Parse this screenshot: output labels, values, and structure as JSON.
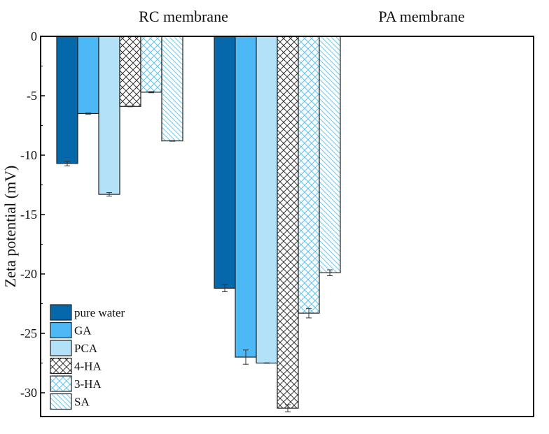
{
  "chart_data": {
    "type": "bar",
    "ylabel": "Zeta potential (mV)",
    "ylim": [
      -32,
      0
    ],
    "yticks": [
      0,
      -5,
      -10,
      -15,
      -20,
      -25,
      -30
    ],
    "grid": false,
    "legend_position": "bottom-left",
    "groups": [
      "RC membrane",
      "PA membrane"
    ],
    "series": [
      {
        "name": "pure water",
        "color": "#0468aa",
        "pattern": "solid",
        "values": [
          -10.7,
          -21.2
        ],
        "errors": [
          0.2,
          0.3
        ]
      },
      {
        "name": "GA",
        "color": "#4cb8f5",
        "pattern": "solid",
        "values": [
          -6.5,
          -27.0
        ],
        "errors": [
          0.05,
          0.6
        ]
      },
      {
        "name": "PCA",
        "color": "#b3e2f8",
        "pattern": "solid",
        "values": [
          -13.3,
          -27.5
        ],
        "errors": [
          0.15,
          0.02
        ]
      },
      {
        "name": "4-HA",
        "color": "#333333",
        "pattern": "crosshatch",
        "values": [
          -5.9,
          -31.3
        ],
        "errors": [
          0.03,
          0.3
        ]
      },
      {
        "name": "3-HA",
        "color": "#5cc4f0",
        "pattern": "crosshatch",
        "values": [
          -4.7,
          -23.3
        ],
        "errors": [
          0.05,
          0.4
        ]
      },
      {
        "name": "SA",
        "color": "#6cc8ee",
        "pattern": "diagonal",
        "values": [
          -8.8,
          -19.9
        ],
        "errors": [
          0.03,
          0.25
        ]
      }
    ]
  }
}
